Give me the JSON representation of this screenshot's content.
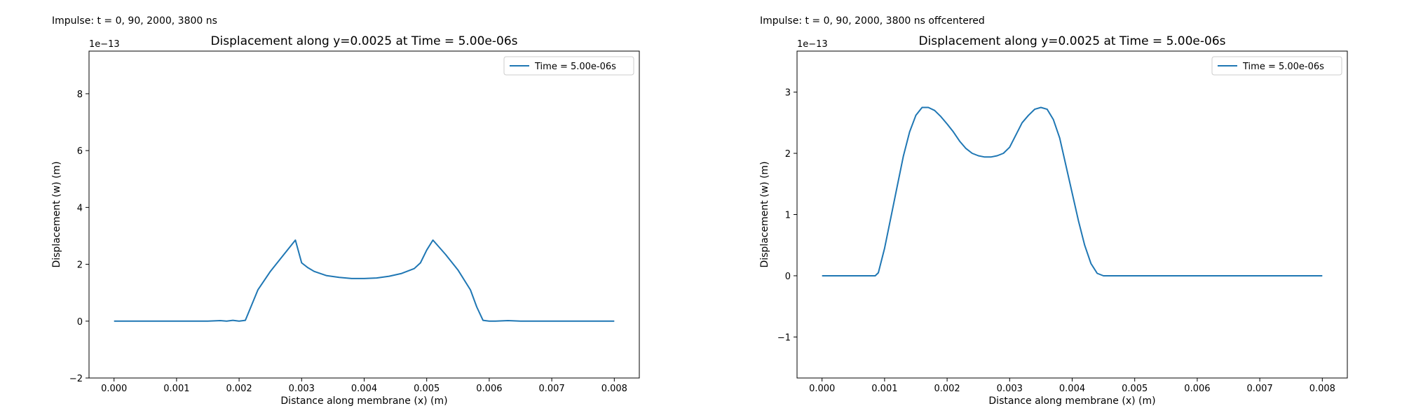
{
  "panels": [
    {
      "label": "Impulse: t = 0, 90, 2000, 3800 ns"
    },
    {
      "label": "Impulse: t = 0, 90, 2000, 3800 ns offcentered"
    }
  ],
  "chart_data": [
    {
      "type": "line",
      "title": "Displacement along y=0.0025 at Time = 5.00e-06s",
      "xlabel": "Distance along membrane (x) (m)",
      "ylabel": "Displacement (w) (m)",
      "y_multiplier_label": "1e−13",
      "xlim": [
        -0.0004,
        0.0084
      ],
      "ylim": [
        -2,
        9.5
      ],
      "xticks": [
        0.0,
        0.001,
        0.002,
        0.003,
        0.004,
        0.005,
        0.006,
        0.007,
        0.008
      ],
      "xtick_labels": [
        "0.000",
        "0.001",
        "0.002",
        "0.003",
        "0.004",
        "0.005",
        "0.006",
        "0.007",
        "0.008"
      ],
      "yticks": [
        -2,
        0,
        2,
        4,
        6,
        8
      ],
      "ytick_labels": [
        "−2",
        "0",
        "2",
        "4",
        "6",
        "8"
      ],
      "legend_position": "top-right",
      "grid": false,
      "color": "#1f77b4",
      "series": [
        {
          "name": "Time = 5.00e-06s",
          "x": [
            0.0,
            0.0005,
            0.001,
            0.0015,
            0.0017,
            0.0018,
            0.0019,
            0.002,
            0.0021,
            0.0023,
            0.0025,
            0.0027,
            0.0029,
            0.003,
            0.0031,
            0.0032,
            0.0034,
            0.0036,
            0.0038,
            0.004,
            0.0042,
            0.0044,
            0.0046,
            0.0048,
            0.0049,
            0.005,
            0.0051,
            0.0053,
            0.0055,
            0.0057,
            0.0058,
            0.0059,
            0.006,
            0.0061,
            0.0063,
            0.0065,
            0.007,
            0.0075,
            0.008
          ],
          "y": [
            0.0,
            0.0,
            0.0,
            0.0,
            0.02,
            0.0,
            0.03,
            0.0,
            0.03,
            1.1,
            1.75,
            2.3,
            2.85,
            2.05,
            1.88,
            1.75,
            1.6,
            1.54,
            1.5,
            1.5,
            1.52,
            1.58,
            1.68,
            1.85,
            2.05,
            2.5,
            2.85,
            2.35,
            1.8,
            1.1,
            0.5,
            0.03,
            0.0,
            0.0,
            0.02,
            0.0,
            0.0,
            0.0,
            0.0
          ]
        }
      ]
    },
    {
      "type": "line",
      "title": "Displacement along y=0.0025 at Time = 5.00e-06s",
      "xlabel": "Distance along membrane (x) (m)",
      "ylabel": "Displacement (w) (m)",
      "y_multiplier_label": "1e−13",
      "xlim": [
        -0.0004,
        0.0084
      ],
      "ylim": [
        -1.67,
        3.67
      ],
      "xticks": [
        0.0,
        0.001,
        0.002,
        0.003,
        0.004,
        0.005,
        0.006,
        0.007,
        0.008
      ],
      "xtick_labels": [
        "0.000",
        "0.001",
        "0.002",
        "0.003",
        "0.004",
        "0.005",
        "0.006",
        "0.007",
        "0.008"
      ],
      "yticks": [
        -1,
        0,
        1,
        2,
        3
      ],
      "ytick_labels": [
        "−1",
        "0",
        "1",
        "2",
        "3"
      ],
      "legend_position": "top-right",
      "grid": false,
      "color": "#1f77b4",
      "series": [
        {
          "name": "Time = 5.00e-06s",
          "x": [
            0.0,
            0.0004,
            0.0008,
            0.00085,
            0.0009,
            0.001,
            0.0011,
            0.0012,
            0.0013,
            0.0014,
            0.0015,
            0.0016,
            0.0017,
            0.0018,
            0.0019,
            0.002,
            0.0021,
            0.0022,
            0.0023,
            0.0024,
            0.0025,
            0.0026,
            0.0027,
            0.0028,
            0.0029,
            0.003,
            0.0031,
            0.0032,
            0.0033,
            0.0034,
            0.0035,
            0.0036,
            0.0037,
            0.0038,
            0.0039,
            0.004,
            0.0041,
            0.0042,
            0.0043,
            0.0044,
            0.0045,
            0.005,
            0.006,
            0.007,
            0.008
          ],
          "y": [
            0.0,
            0.0,
            0.0,
            0.0,
            0.05,
            0.45,
            0.95,
            1.45,
            1.95,
            2.35,
            2.62,
            2.75,
            2.75,
            2.7,
            2.6,
            2.48,
            2.35,
            2.2,
            2.08,
            2.0,
            1.96,
            1.94,
            1.94,
            1.96,
            2.0,
            2.1,
            2.3,
            2.5,
            2.62,
            2.72,
            2.75,
            2.72,
            2.55,
            2.25,
            1.8,
            1.35,
            0.9,
            0.5,
            0.2,
            0.04,
            0.0,
            0.0,
            0.0,
            0.0,
            0.0
          ]
        }
      ]
    }
  ]
}
